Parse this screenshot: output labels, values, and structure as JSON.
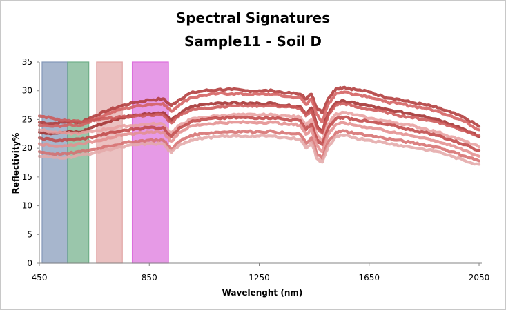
{
  "chart_data": {
    "type": "line",
    "title": [
      "Spectral Signatures",
      "Sample11 - Soil D"
    ],
    "xlabel": "Wavelenght (nm)",
    "ylabel": "Reflectivity%",
    "xlim": [
      450,
      2060
    ],
    "ylim": [
      0,
      35
    ],
    "x_ticks": [
      450,
      850,
      1250,
      1650,
      2050
    ],
    "y_ticks": [
      0,
      5,
      10,
      15,
      20,
      25,
      30,
      35
    ],
    "band_colors": [
      "#8297b8",
      "#6fae88",
      "#e2a6a6",
      "#dc6fdc"
    ],
    "bands": [
      {
        "x0": 460,
        "x1": 552
      },
      {
        "x0": 553,
        "x1": 630
      },
      {
        "x0": 658,
        "x1": 752
      },
      {
        "x0": 788,
        "x1": 920
      }
    ],
    "x": [
      450,
      500,
      550,
      600,
      650,
      700,
      750,
      800,
      850,
      900,
      930,
      960,
      1000,
      1050,
      1100,
      1150,
      1200,
      1250,
      1300,
      1350,
      1400,
      1420,
      1440,
      1460,
      1480,
      1500,
      1530,
      1560,
      1600,
      1650,
      1700,
      1750,
      1800,
      1850,
      1900,
      1950,
      2000,
      2050
    ],
    "series": [
      {
        "color": "#b03a3a",
        "values": [
          24.5,
          24.3,
          24.6,
          24.5,
          25.6,
          26.6,
          27.4,
          28.0,
          28.4,
          28.6,
          27.4,
          28.5,
          29.6,
          30.0,
          30.2,
          30.2,
          30.0,
          30.0,
          30.0,
          29.6,
          29.4,
          28.6,
          29.4,
          27.0,
          26.2,
          28.6,
          30.4,
          30.6,
          30.2,
          29.8,
          29.0,
          28.6,
          28.0,
          27.6,
          27.0,
          26.2,
          25.2,
          23.8
        ]
      },
      {
        "color": "#d46060",
        "values": [
          24.0,
          23.8,
          24.0,
          24.0,
          25.0,
          26.0,
          26.8,
          27.3,
          27.6,
          27.8,
          26.4,
          27.6,
          28.8,
          29.2,
          29.5,
          29.5,
          29.4,
          29.4,
          29.4,
          29.0,
          28.8,
          27.6,
          28.6,
          25.8,
          24.6,
          27.6,
          29.6,
          29.8,
          29.4,
          29.0,
          28.2,
          27.8,
          27.4,
          27.0,
          26.4,
          25.6,
          24.6,
          23.2
        ]
      },
      {
        "color": "#a33030",
        "values": [
          22.8,
          22.6,
          22.8,
          22.8,
          23.8,
          24.6,
          25.3,
          25.8,
          26.0,
          26.2,
          24.8,
          26.0,
          27.2,
          27.6,
          27.9,
          27.9,
          27.8,
          27.8,
          27.8,
          27.4,
          27.2,
          26.0,
          27.0,
          24.0,
          22.8,
          26.0,
          28.0,
          28.2,
          27.8,
          27.4,
          26.8,
          26.4,
          26.0,
          25.6,
          25.0,
          24.2,
          23.2,
          22.0
        ]
      },
      {
        "color": "#cc5858",
        "values": [
          25.6,
          25.2,
          24.8,
          24.6,
          24.8,
          25.2,
          25.4,
          25.6,
          25.8,
          25.8,
          24.4,
          25.8,
          26.6,
          27.0,
          27.2,
          27.4,
          27.4,
          27.4,
          27.4,
          27.2,
          27.0,
          25.6,
          26.6,
          23.6,
          22.6,
          25.6,
          27.6,
          27.8,
          27.2,
          26.8,
          26.4,
          25.8,
          25.4,
          25.0,
          24.6,
          23.8,
          23.0,
          22.2
        ]
      },
      {
        "color": "#e8a0a0",
        "values": [
          23.2,
          22.8,
          22.6,
          22.6,
          23.0,
          23.4,
          23.8,
          24.0,
          24.2,
          24.2,
          22.6,
          24.0,
          25.0,
          25.4,
          25.6,
          25.8,
          25.8,
          25.8,
          25.8,
          25.6,
          25.4,
          24.0,
          25.0,
          22.2,
          21.2,
          24.2,
          26.0,
          26.2,
          25.8,
          25.2,
          24.8,
          24.4,
          24.0,
          23.4,
          22.8,
          22.0,
          21.2,
          20.2
        ]
      },
      {
        "color": "#c04848",
        "values": [
          21.8,
          21.4,
          21.4,
          21.6,
          22.0,
          22.6,
          23.0,
          23.4,
          23.6,
          23.6,
          22.0,
          23.6,
          24.6,
          25.0,
          25.2,
          25.3,
          25.3,
          25.3,
          25.3,
          25.0,
          24.8,
          23.2,
          24.2,
          21.4,
          20.6,
          23.4,
          25.2,
          25.4,
          25.0,
          24.6,
          24.2,
          23.8,
          23.2,
          22.8,
          22.2,
          21.4,
          20.6,
          19.6
        ]
      },
      {
        "color": "#e49090",
        "values": [
          20.8,
          20.4,
          20.4,
          20.8,
          21.2,
          21.8,
          22.2,
          22.6,
          22.8,
          22.8,
          21.2,
          22.8,
          23.8,
          24.2,
          24.4,
          24.5,
          24.5,
          24.5,
          24.5,
          24.2,
          24.0,
          22.4,
          23.4,
          20.4,
          19.4,
          22.4,
          24.2,
          24.4,
          24.0,
          23.6,
          23.2,
          22.6,
          22.2,
          21.8,
          21.2,
          20.4,
          19.6,
          18.6
        ]
      },
      {
        "color": "#d67070",
        "values": [
          19.4,
          19.0,
          19.0,
          19.4,
          19.8,
          20.4,
          20.8,
          21.2,
          21.4,
          21.4,
          19.8,
          21.2,
          22.2,
          22.6,
          22.8,
          22.9,
          22.9,
          22.9,
          22.9,
          22.6,
          22.4,
          20.8,
          21.8,
          19.0,
          18.2,
          21.0,
          22.8,
          23.0,
          22.6,
          22.2,
          21.8,
          21.4,
          21.0,
          20.6,
          20.2,
          19.4,
          18.6,
          17.8
        ]
      },
      {
        "color": "#e4a8a8",
        "values": [
          18.6,
          18.4,
          18.4,
          18.8,
          19.2,
          19.8,
          20.2,
          20.6,
          20.8,
          20.8,
          19.2,
          20.6,
          21.4,
          21.8,
          22.0,
          22.1,
          22.1,
          22.1,
          22.1,
          21.8,
          21.6,
          20.0,
          21.0,
          18.2,
          17.6,
          20.2,
          22.0,
          22.2,
          21.8,
          21.4,
          21.0,
          20.6,
          20.2,
          19.8,
          19.4,
          18.6,
          17.8,
          17.2
        ]
      }
    ]
  }
}
